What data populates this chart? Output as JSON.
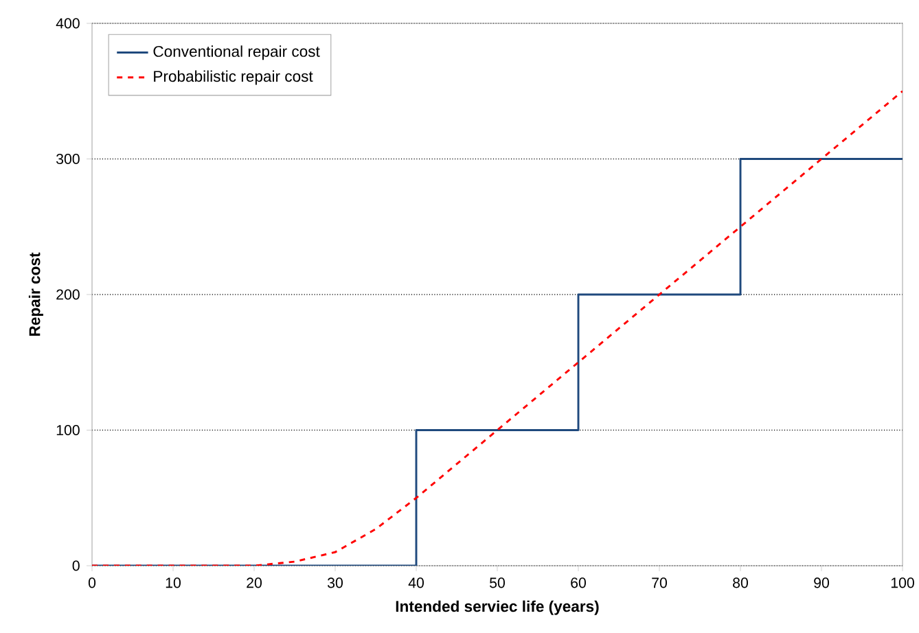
{
  "chart_data": {
    "type": "line",
    "xlabel": "Intended serviec life (years)",
    "ylabel": "Repair cost",
    "xlim": [
      0,
      100
    ],
    "ylim": [
      0,
      400
    ],
    "xticks": [
      0,
      10,
      20,
      30,
      40,
      50,
      60,
      70,
      80,
      90,
      100
    ],
    "yticks": [
      0,
      100,
      200,
      300,
      400
    ],
    "grid": "y",
    "legend": "top left",
    "marker": "none",
    "series": [
      {
        "name": "Conventional repair cost",
        "type": "step",
        "color": "#1f497d",
        "line_style": "solid",
        "x": [
          0,
          40,
          60,
          80,
          100
        ],
        "values": [
          0,
          100,
          200,
          300,
          300
        ]
      },
      {
        "name": "Probabilistic  repair cost",
        "color": "#ff0000",
        "line_style": "dashed",
        "x": [
          0,
          10,
          20,
          25,
          30,
          35,
          40,
          45,
          50,
          55,
          60,
          65,
          70,
          75,
          80,
          85,
          90,
          95,
          100
        ],
        "values": [
          0,
          0,
          0,
          3,
          10,
          27,
          50,
          75,
          100,
          125,
          150,
          175,
          200,
          225,
          250,
          275,
          300,
          325,
          350
        ]
      }
    ]
  }
}
